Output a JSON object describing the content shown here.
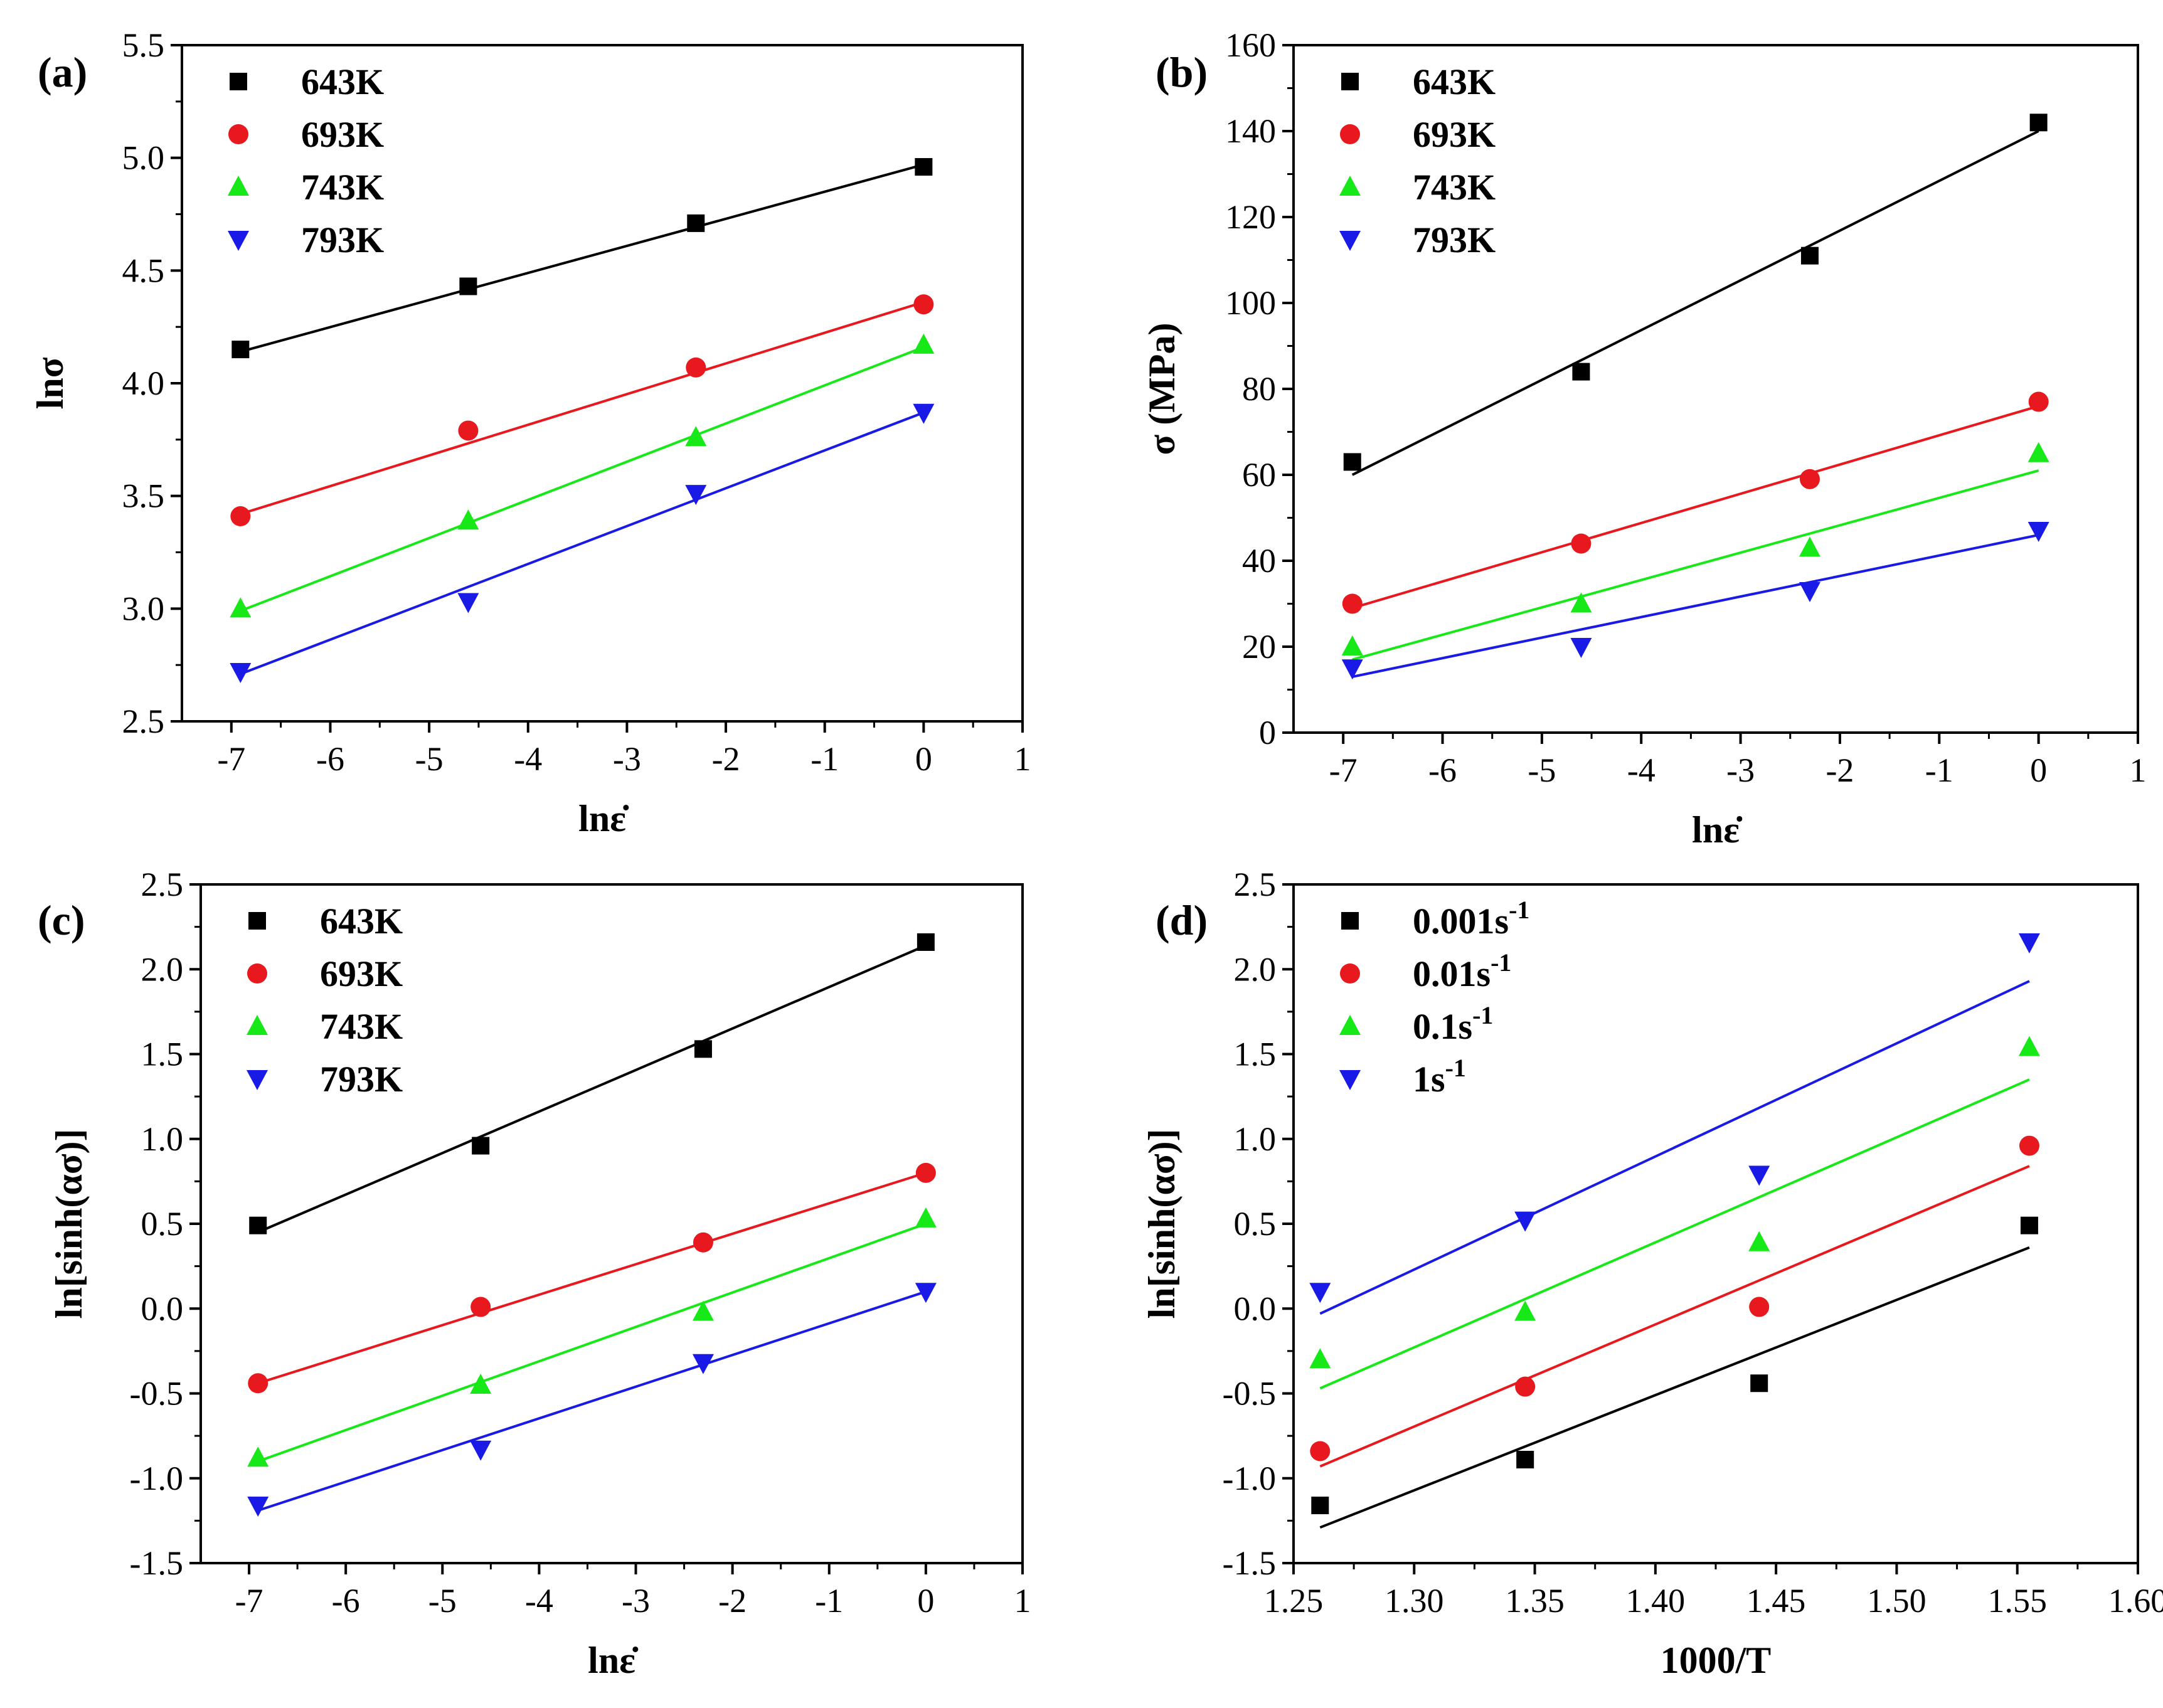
{
  "chart_data": [
    {
      "type": "scatter",
      "panel_label": "(a)",
      "title": "",
      "xlabel": "lnε̇",
      "ylabel": "lnσ",
      "xlim": [
        -7.5,
        1
      ],
      "ylim": [
        2.5,
        5.5
      ],
      "xticks": [
        -7,
        -6,
        -5,
        -4,
        -3,
        -2,
        -1,
        0,
        1
      ],
      "xtick_labels": [
        "-7",
        "-6",
        "-5",
        "-4",
        "-3",
        "-2",
        "-1",
        "0",
        "1"
      ],
      "yticks": [
        2.5,
        3.0,
        3.5,
        4.0,
        4.5,
        5.0,
        5.5
      ],
      "ytick_labels": [
        "2.5",
        "3.0",
        "3.5",
        "4.0",
        "4.5",
        "5.0",
        "5.5"
      ],
      "legend_position": "top-left",
      "x": [
        -6.908,
        -4.605,
        -2.303,
        0
      ],
      "series": [
        {
          "name": "643K",
          "color": "#000000",
          "marker": "square",
          "values": [
            4.15,
            4.43,
            4.71,
            4.96
          ],
          "fit": [
            4.14,
            4.97
          ]
        },
        {
          "name": "693K",
          "color": "#e8191e",
          "marker": "circle",
          "values": [
            3.41,
            3.79,
            4.07,
            4.35
          ],
          "fit": [
            3.42,
            4.36
          ]
        },
        {
          "name": "743K",
          "color": "#17e817",
          "marker": "triangle-up",
          "values": [
            3.0,
            3.39,
            3.76,
            4.17
          ],
          "fit": [
            2.99,
            4.16
          ]
        },
        {
          "name": "793K",
          "color": "#1a1ae6",
          "marker": "triangle-down",
          "values": [
            2.72,
            3.03,
            3.51,
            3.87
          ],
          "fit": [
            2.71,
            3.87
          ]
        }
      ]
    },
    {
      "type": "scatter",
      "panel_label": "(b)",
      "title": "",
      "xlabel": "lnε̇",
      "ylabel": "σ (MPa)",
      "xlim": [
        -7.5,
        1
      ],
      "ylim": [
        0,
        160
      ],
      "xticks": [
        -7,
        -6,
        -5,
        -4,
        -3,
        -2,
        -1,
        0,
        1
      ],
      "xtick_labels": [
        "-7",
        "-6",
        "-5",
        "-4",
        "-3",
        "-2",
        "-1",
        "0",
        "1"
      ],
      "yticks": [
        0,
        20,
        40,
        60,
        80,
        100,
        120,
        140,
        160
      ],
      "ytick_labels": [
        "0",
        "20",
        "40",
        "60",
        "80",
        "100",
        "120",
        "140",
        "160"
      ],
      "legend_position": "top-left",
      "x": [
        -6.908,
        -4.605,
        -2.303,
        0
      ],
      "series": [
        {
          "name": "643K",
          "color": "#000000",
          "marker": "square",
          "values": [
            63,
            84,
            111,
            142
          ],
          "fit": [
            60,
            140
          ]
        },
        {
          "name": "693K",
          "color": "#e8191e",
          "marker": "circle",
          "values": [
            30,
            44,
            59,
            77
          ],
          "fit": [
            29,
            76
          ]
        },
        {
          "name": "743K",
          "color": "#17e817",
          "marker": "triangle-up",
          "values": [
            20,
            30,
            43,
            65
          ],
          "fit": [
            17,
            61
          ]
        },
        {
          "name": "793K",
          "color": "#1a1ae6",
          "marker": "triangle-down",
          "values": [
            15,
            20,
            33,
            47
          ],
          "fit": [
            13,
            46
          ]
        }
      ]
    },
    {
      "type": "scatter",
      "panel_label": "(c)",
      "title": "",
      "xlabel": "lnε̇",
      "ylabel": "ln[sinh(ασ)]",
      "xlim": [
        -7.5,
        1
      ],
      "ylim": [
        -1.5,
        2.5
      ],
      "xticks": [
        -7,
        -6,
        -5,
        -4,
        -3,
        -2,
        -1,
        0,
        1
      ],
      "xtick_labels": [
        "-7",
        "-6",
        "-5",
        "-4",
        "-3",
        "-2",
        "-1",
        "0",
        "1"
      ],
      "yticks": [
        -1.5,
        -1.0,
        -0.5,
        0.0,
        0.5,
        1.0,
        1.5,
        2.0,
        2.5
      ],
      "ytick_labels": [
        "-1.5",
        "-1.0",
        "-0.5",
        "0.0",
        "0.5",
        "1.0",
        "1.5",
        "2.0",
        "2.5"
      ],
      "legend_position": "top-left",
      "x": [
        -6.908,
        -4.605,
        -2.303,
        0
      ],
      "series": [
        {
          "name": "643K",
          "color": "#000000",
          "marker": "square",
          "values": [
            0.49,
            0.96,
            1.53,
            2.16
          ],
          "fit": [
            0.45,
            2.14
          ]
        },
        {
          "name": "693K",
          "color": "#e8191e",
          "marker": "circle",
          "values": [
            -0.44,
            0.01,
            0.39,
            0.8
          ],
          "fit": [
            -0.44,
            0.8
          ]
        },
        {
          "name": "743K",
          "color": "#17e817",
          "marker": "triangle-up",
          "values": [
            -0.88,
            -0.45,
            -0.02,
            0.53
          ],
          "fit": [
            -0.9,
            0.5
          ]
        },
        {
          "name": "793K",
          "color": "#1a1ae6",
          "marker": "triangle-down",
          "values": [
            -1.16,
            -0.83,
            -0.32,
            0.1
          ],
          "fit": [
            -1.19,
            0.1
          ]
        }
      ]
    },
    {
      "type": "scatter",
      "panel_label": "(d)",
      "title": "",
      "xlabel": "1000/T",
      "ylabel": "ln[sinh(ασ)]",
      "xlim": [
        1.25,
        1.6
      ],
      "ylim": [
        -1.5,
        2.5
      ],
      "xticks": [
        1.25,
        1.3,
        1.35,
        1.4,
        1.45,
        1.5,
        1.55,
        1.6
      ],
      "xtick_labels": [
        "1.25",
        "1.30",
        "1.35",
        "1.40",
        "1.45",
        "1.50",
        "1.55",
        "1.60"
      ],
      "yticks": [
        -1.5,
        -1.0,
        -0.5,
        0.0,
        0.5,
        1.0,
        1.5,
        2.0,
        2.5
      ],
      "ytick_labels": [
        "-1.5",
        "-1.0",
        "-0.5",
        "0.0",
        "0.5",
        "1.0",
        "1.5",
        "2.0",
        "2.5"
      ],
      "legend_position": "top-left",
      "x": [
        1.261,
        1.346,
        1.443,
        1.555
      ],
      "series": [
        {
          "name": "0.001s",
          "name_sup": "-1",
          "color": "#000000",
          "marker": "square",
          "values": [
            -1.16,
            -0.89,
            -0.44,
            0.49
          ],
          "fit": [
            -1.29,
            0.36
          ]
        },
        {
          "name": "0.01s",
          "name_sup": "-1",
          "color": "#e8191e",
          "marker": "circle",
          "values": [
            -0.84,
            -0.46,
            0.01,
            0.96
          ],
          "fit": [
            -0.93,
            0.84
          ]
        },
        {
          "name": "0.1s",
          "name_sup": "-1",
          "color": "#17e817",
          "marker": "triangle-up",
          "values": [
            -0.3,
            -0.02,
            0.39,
            1.54
          ],
          "fit": [
            -0.47,
            1.35
          ]
        },
        {
          "name": "1s",
          "name_sup": "-1",
          "color": "#1a1ae6",
          "marker": "triangle-down",
          "values": [
            0.1,
            0.52,
            0.79,
            2.16
          ],
          "fit": [
            -0.03,
            1.93
          ]
        }
      ]
    }
  ]
}
